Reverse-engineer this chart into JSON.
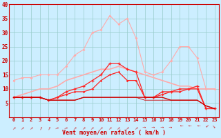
{
  "x": [
    0,
    1,
    2,
    3,
    4,
    5,
    6,
    7,
    8,
    9,
    10,
    11,
    12,
    13,
    14,
    15,
    16,
    17,
    18,
    19,
    20,
    21,
    22,
    23
  ],
  "xlabel": "Vent moyen/en rafales ( km/h )",
  "ylim": [
    0,
    40
  ],
  "yticks": [
    0,
    5,
    10,
    15,
    20,
    25,
    30,
    35,
    40
  ],
  "bg_color": "#cceeff",
  "grid_color": "#aadddd",
  "line_pink_upper": [
    13,
    14,
    14,
    15,
    15,
    15,
    18,
    22,
    24,
    30,
    31,
    36,
    33,
    35,
    28,
    16,
    15,
    16,
    20,
    25,
    25,
    21,
    10,
    10
  ],
  "line_pink_trend": [
    7,
    8,
    9,
    10,
    10,
    11,
    13,
    14,
    15,
    16,
    17,
    17,
    18,
    17,
    16,
    15,
    14,
    13,
    12,
    11,
    11,
    10,
    10,
    10
  ],
  "line_red_markers1": [
    7,
    7,
    7,
    7,
    6,
    7,
    9,
    10,
    11,
    13,
    15,
    19,
    19,
    17,
    16,
    7,
    7,
    9,
    9,
    10,
    10,
    11,
    3,
    3
  ],
  "line_red_markers2": [
    7,
    7,
    7,
    7,
    6,
    7,
    8,
    9,
    9,
    10,
    13,
    15,
    16,
    13,
    13,
    7,
    7,
    8,
    9,
    9,
    10,
    10,
    3,
    3
  ],
  "line_darkred_flat1": [
    7,
    7,
    7,
    7,
    6,
    6,
    6,
    6,
    7,
    7,
    7,
    7,
    7,
    7,
    7,
    7,
    7,
    7,
    6,
    6,
    6,
    6,
    4,
    3
  ],
  "line_darkred_flat2": [
    7,
    7,
    7,
    7,
    6,
    6,
    6,
    6,
    7,
    7,
    7,
    7,
    7,
    7,
    7,
    6,
    6,
    6,
    6,
    6,
    6,
    6,
    4,
    3
  ],
  "wind_dirs": [
    225,
    225,
    225,
    202,
    202,
    247,
    247,
    225,
    225,
    225,
    225,
    225,
    225,
    225,
    225,
    270,
    270,
    270,
    270,
    90,
    90,
    90,
    45,
    315
  ],
  "colors": {
    "light_pink": "#ffaaaa",
    "medium_pink": "#ff8888",
    "medium_red": "#ff2222",
    "dark_red": "#cc0000",
    "axis_text": "#cc0000"
  }
}
